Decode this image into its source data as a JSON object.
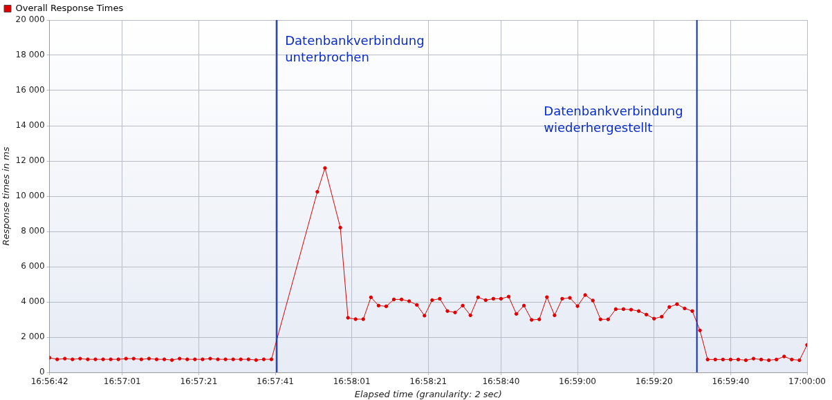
{
  "chart_data": {
    "type": "line",
    "xlabel": "Elapsed time (granularity: 2 sec)",
    "ylabel": "Response times in ms",
    "x": [
      16.945,
      16.945556,
      16.946111,
      16.946667,
      16.947222,
      16.947778,
      16.948333,
      16.948889,
      16.949444,
      16.95,
      16.950556,
      16.951111,
      16.951667,
      16.952222,
      16.952778,
      16.953333,
      16.953889,
      16.954444,
      16.955,
      16.955556,
      16.956111,
      16.956667,
      16.957222,
      16.957778,
      16.958333,
      16.958889,
      16.959444,
      16.96,
      16.960556,
      16.961111,
      16.964444,
      16.965,
      16.966111,
      16.966667,
      16.967222,
      16.967778,
      16.968333,
      16.968889,
      16.969444,
      16.97,
      16.970556,
      16.971111,
      16.971667,
      16.972222,
      16.972778,
      16.973333,
      16.973889,
      16.974444,
      16.975,
      16.975556,
      16.976111,
      16.976667,
      16.977222,
      16.977778,
      16.978333,
      16.978889,
      16.979444,
      16.98,
      16.980556,
      16.981111,
      16.981667,
      16.982222,
      16.982778,
      16.983333,
      16.983889,
      16.984444,
      16.985,
      16.985556,
      16.986111,
      16.986667,
      16.987222,
      16.987778,
      16.988333,
      16.988889,
      16.989444,
      16.99,
      16.990556,
      16.991111,
      16.991667,
      16.992222,
      16.992778,
      16.993333,
      16.993889,
      16.994444,
      16.995,
      16.995556,
      16.996111,
      16.996667,
      16.997222,
      16.997778,
      16.998333,
      16.998889,
      16.999444,
      17.0
    ],
    "series": [
      {
        "name": "Overall Response Times",
        "color": "#e00000",
        "values": [
          830,
          740,
          780,
          740,
          780,
          740,
          740,
          740,
          740,
          740,
          780,
          780,
          740,
          780,
          740,
          740,
          700,
          780,
          740,
          740,
          740,
          780,
          740,
          740,
          740,
          740,
          740,
          700,
          740,
          740,
          10250,
          11600,
          8220,
          3100,
          3020,
          3020,
          4260,
          3790,
          3750,
          4140,
          4140,
          4040,
          3830,
          3220,
          4100,
          4180,
          3480,
          3400,
          3790,
          3240,
          4260,
          4100,
          4180,
          4180,
          4300,
          3320,
          3790,
          2980,
          3010,
          4270,
          3240,
          4180,
          4230,
          3760,
          4390,
          4080,
          3010,
          3010,
          3590,
          3590,
          3560,
          3480,
          3280,
          3050,
          3160,
          3710,
          3870,
          3630,
          3480,
          2380,
          730,
          730,
          730,
          730,
          730,
          690,
          780,
          730,
          690,
          730,
          900,
          730,
          690,
          1560
        ]
      }
    ],
    "xlim": [
      16.945,
      17.0
    ],
    "xticks": [
      {
        "value": 16.945,
        "label": "16:56:42"
      },
      {
        "value": 16.950278,
        "label": "16:57:01"
      },
      {
        "value": 16.955833,
        "label": "16:57:21"
      },
      {
        "value": 16.961389,
        "label": "16:57:41"
      },
      {
        "value": 16.966944,
        "label": "16:58:01"
      },
      {
        "value": 16.9725,
        "label": "16:58:21"
      },
      {
        "value": 16.977778,
        "label": "16:58:40"
      },
      {
        "value": 16.983333,
        "label": "16:59:00"
      },
      {
        "value": 16.988889,
        "label": "16:59:20"
      },
      {
        "value": 16.994444,
        "label": "16:59:40"
      },
      {
        "value": 17.0,
        "label": "17:00:00"
      }
    ],
    "ylim": [
      0,
      20000
    ],
    "yticks": [
      {
        "value": 0,
        "label": "0"
      },
      {
        "value": 2000,
        "label": "2 000"
      },
      {
        "value": 4000,
        "label": "4 000"
      },
      {
        "value": 6000,
        "label": "6 000"
      },
      {
        "value": 8000,
        "label": "8 000"
      },
      {
        "value": 10000,
        "label": "10 000"
      },
      {
        "value": 12000,
        "label": "12 000"
      },
      {
        "value": 14000,
        "label": "14 000"
      },
      {
        "value": 16000,
        "label": "16 000"
      },
      {
        "value": 18000,
        "label": "18 000"
      },
      {
        "value": 20000,
        "label": "20 000"
      }
    ],
    "ref_lines": [
      {
        "axis": "x",
        "value": 16.9615,
        "label": "Datenbankverbindung\nunterbrochen",
        "color": "#0a2ccc"
      },
      {
        "axis": "x",
        "value": 16.992,
        "label": "Datenbankverbindung\nwiederhergestellt",
        "color": "#0a2ccc"
      }
    ],
    "grid": true,
    "legend": "top left",
    "marker": "circle",
    "line_style": "solid"
  }
}
